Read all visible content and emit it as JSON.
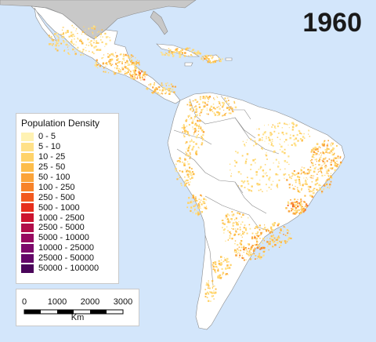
{
  "map": {
    "year": "1960",
    "colors": {
      "ocean": "#d3e6fb",
      "land": "#ffffff",
      "north_america": "#c8c8c8",
      "border": "#8a8a8a"
    }
  },
  "legend": {
    "title": "Population Density",
    "items": [
      {
        "label": "0 - 5",
        "color": "#fff2b3"
      },
      {
        "label": "5 - 10",
        "color": "#ffe189"
      },
      {
        "label": "10 - 25",
        "color": "#ffd36a"
      },
      {
        "label": "25 - 50",
        "color": "#fdbd4a"
      },
      {
        "label": "50 - 100",
        "color": "#fba43a"
      },
      {
        "label": "100 - 250",
        "color": "#f7832a"
      },
      {
        "label": "250 - 500",
        "color": "#f25a20"
      },
      {
        "label": "500 - 1000",
        "color": "#e62e1c"
      },
      {
        "label": "1000 - 2500",
        "color": "#cc1530"
      },
      {
        "label": "2500 - 5000",
        "color": "#b10e4a"
      },
      {
        "label": "5000 - 10000",
        "color": "#970a60"
      },
      {
        "label": "10000 - 25000",
        "color": "#7d0a6b"
      },
      {
        "label": "25000 - 50000",
        "color": "#640768"
      },
      {
        "label": "50000 - 100000",
        "color": "#4a055a"
      }
    ]
  },
  "scalebar": {
    "ticks": [
      "0",
      "1000",
      "2000",
      "3000"
    ],
    "unit": "Km"
  }
}
